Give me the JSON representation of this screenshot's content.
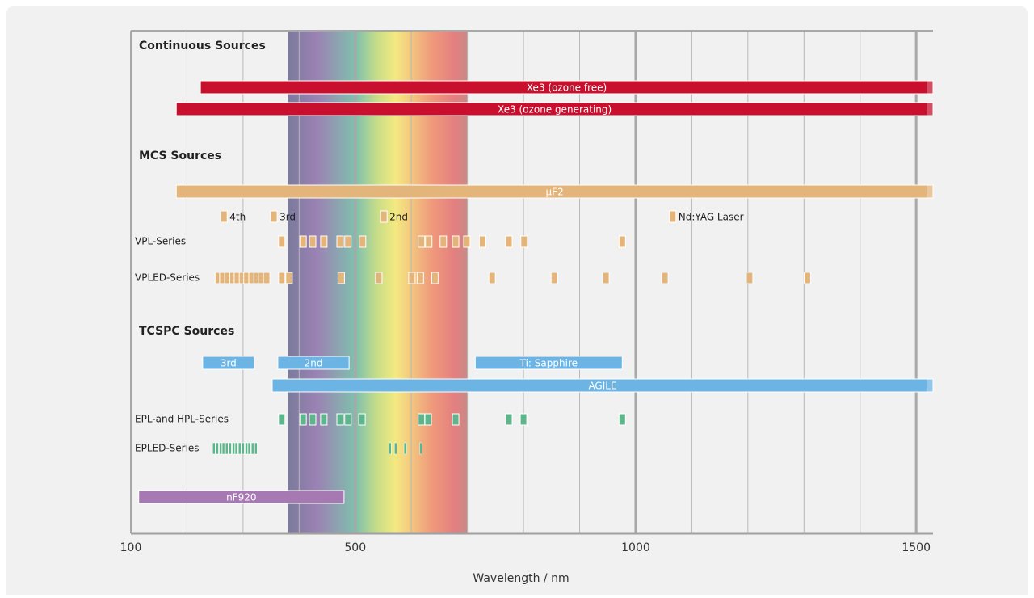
{
  "chart_data": {
    "type": "wavelength-coverage",
    "xlabel": "Wavelength / nm",
    "xlim": [
      100,
      1530
    ],
    "xticks": [
      100,
      500,
      1000,
      1500
    ],
    "minor_xticks": [
      200,
      300,
      400,
      600,
      700,
      800,
      900,
      1100,
      1200,
      1300,
      1400
    ],
    "spectrum": [
      380,
      700
    ],
    "rows": [
      {
        "kind": "heading",
        "text": "Continuous Sources"
      },
      {
        "kind": "range",
        "color": "#c8102e",
        "bars": [
          {
            "label": "Xe3 (ozone free)",
            "start": 224,
            "end": 1530
          }
        ]
      },
      {
        "kind": "range",
        "color": "#c8102e",
        "bars": [
          {
            "label": "Xe3 (ozone generating)",
            "start": 181,
            "end": 1530
          }
        ]
      },
      {
        "kind": "heading",
        "text": "MCS Sources"
      },
      {
        "kind": "range",
        "color": "#e3b57a",
        "bars": [
          {
            "label": "μF2",
            "start": 181,
            "end": 1530
          }
        ]
      },
      {
        "kind": "points",
        "color": "#e3b57a",
        "values": [
          266,
          355,
          551,
          1066
        ],
        "point_labels": [
          "4th",
          "3rd",
          "2nd",
          "Nd:YAG Laser"
        ]
      },
      {
        "kind": "points",
        "label": "VPL-Series",
        "color": "#e3b57a",
        "values": [
          369,
          407,
          424,
          444,
          473,
          487,
          513,
          618,
          631,
          657,
          679,
          699,
          727,
          774,
          801,
          976
        ]
      },
      {
        "kind": "points",
        "label": "VPLED-Series",
        "color": "#e3b57a",
        "values": [
          256,
          264,
          273,
          282,
          290,
          299,
          307,
          316,
          325,
          333,
          342,
          369,
          382,
          475,
          542,
          601,
          616,
          642,
          744,
          855,
          947,
          1052,
          1203,
          1306
        ]
      },
      {
        "kind": "heading",
        "text": "TCSPC Sources"
      },
      {
        "kind": "range",
        "color": "#6cb4e4",
        "bars": [
          {
            "label": "3rd",
            "start": 228,
            "end": 320
          },
          {
            "label": "2nd",
            "start": 362,
            "end": 489
          },
          {
            "label": "Ti: Sapphire",
            "start": 714,
            "end": 976
          }
        ]
      },
      {
        "kind": "range",
        "color": "#6cb4e4",
        "bars": [
          {
            "label": "AGILE",
            "start": 352,
            "end": 1530
          }
        ]
      },
      {
        "kind": "points",
        "label": "EPL-and HPL-Series",
        "color": "#5fb58b",
        "values": [
          369,
          407,
          424,
          444,
          473,
          487,
          512,
          618,
          630,
          679,
          774,
          800,
          976
        ]
      },
      {
        "kind": "points",
        "label": "EPLED-Series",
        "color": "#5fb58b",
        "thin": true,
        "values": [
          248,
          254,
          260,
          265,
          271,
          277,
          283,
          288,
          294,
          300,
          306,
          311,
          317,
          323,
          562,
          572,
          589,
          617
        ]
      },
      {
        "kind": "range",
        "color": "#a679b3",
        "bars": [
          {
            "label": "nF920",
            "start": 114,
            "end": 480
          }
        ]
      }
    ]
  }
}
